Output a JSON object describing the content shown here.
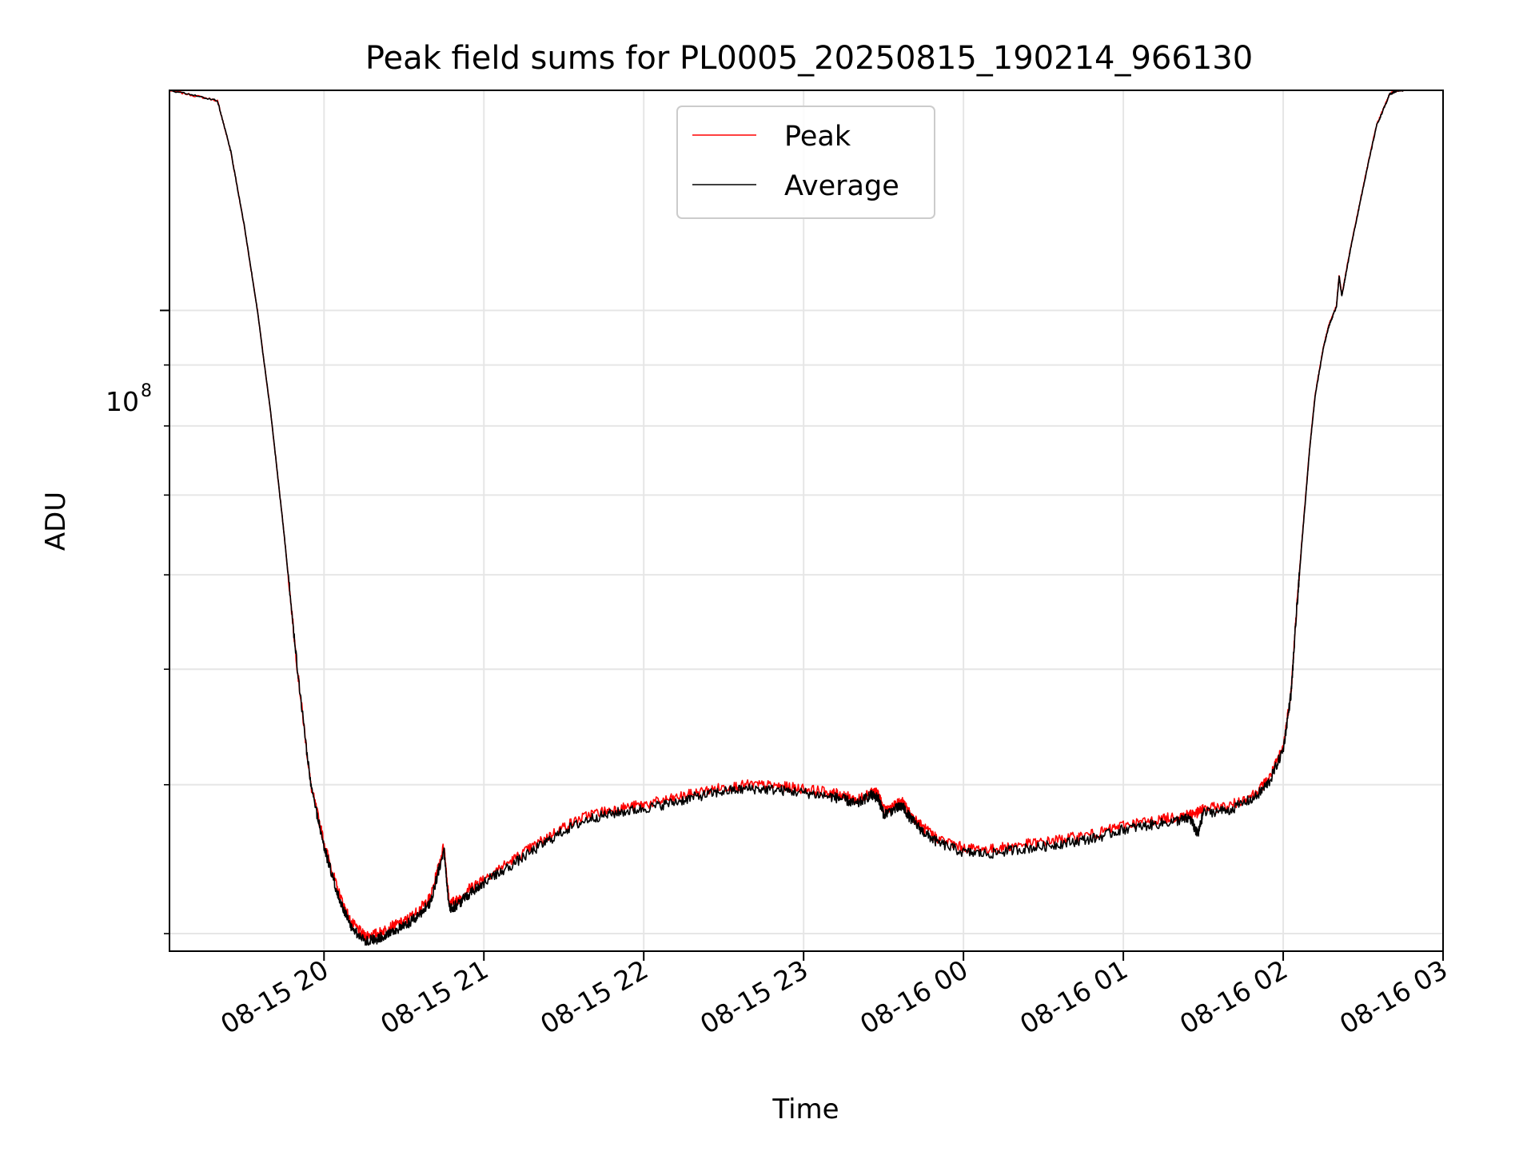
{
  "chart_data": {
    "type": "line",
    "title": "Peak field sums for PL0005_20250815_190214_966130",
    "xlabel": "Time",
    "ylabel": "ADU",
    "x_scale": "time",
    "y_scale": "log",
    "x_tick_labels": [
      "08-15 20",
      "08-15 21",
      "08-15 22",
      "08-15 23",
      "08-16 00",
      "08-16 01",
      "08-16 02",
      "08-16 03"
    ],
    "y_tick_label": {
      "base": "10",
      "exponent": "8"
    },
    "xlim": [
      "2025-08-15 19:02",
      "2025-08-16 03:00"
    ],
    "ylim": [
      29000000,
      153000000
    ],
    "grid": true,
    "legend": {
      "placement": "upper center",
      "entries": [
        "Peak",
        "Average"
      ]
    },
    "colors": {
      "Peak": "#ff0000",
      "Average": "#000000",
      "grid": "#e6e6e6"
    },
    "x": [
      "2025-08-15 19:02",
      "2025-08-15 19:20",
      "2025-08-15 19:25",
      "2025-08-15 19:30",
      "2025-08-15 19:35",
      "2025-08-15 19:40",
      "2025-08-15 19:45",
      "2025-08-15 19:50",
      "2025-08-15 19:55",
      "2025-08-15 20:00",
      "2025-08-15 20:05",
      "2025-08-15 20:10",
      "2025-08-15 20:15",
      "2025-08-15 20:20",
      "2025-08-15 20:25",
      "2025-08-15 20:30",
      "2025-08-15 20:35",
      "2025-08-15 20:40",
      "2025-08-15 20:45",
      "2025-08-15 20:47",
      "2025-08-15 20:50",
      "2025-08-15 20:55",
      "2025-08-15 21:00",
      "2025-08-15 21:10",
      "2025-08-15 21:20",
      "2025-08-15 21:30",
      "2025-08-15 21:40",
      "2025-08-15 21:50",
      "2025-08-15 22:00",
      "2025-08-15 22:10",
      "2025-08-15 22:20",
      "2025-08-15 22:30",
      "2025-08-15 22:40",
      "2025-08-15 22:50",
      "2025-08-15 23:00",
      "2025-08-15 23:10",
      "2025-08-15 23:15",
      "2025-08-15 23:20",
      "2025-08-15 23:25",
      "2025-08-15 23:28",
      "2025-08-15 23:30",
      "2025-08-15 23:35",
      "2025-08-15 23:37",
      "2025-08-15 23:40",
      "2025-08-15 23:45",
      "2025-08-15 23:50",
      "2025-08-16 00:00",
      "2025-08-16 00:10",
      "2025-08-16 00:20",
      "2025-08-16 00:30",
      "2025-08-16 00:40",
      "2025-08-16 00:50",
      "2025-08-16 01:00",
      "2025-08-16 01:10",
      "2025-08-16 01:20",
      "2025-08-16 01:25",
      "2025-08-16 01:28",
      "2025-08-16 01:30",
      "2025-08-16 01:40",
      "2025-08-16 01:50",
      "2025-08-16 01:55",
      "2025-08-16 02:00",
      "2025-08-16 02:03",
      "2025-08-16 02:05",
      "2025-08-16 02:07",
      "2025-08-16 02:10",
      "2025-08-16 02:12",
      "2025-08-16 02:15",
      "2025-08-16 02:17",
      "2025-08-16 02:20",
      "2025-08-16 02:21",
      "2025-08-16 02:22",
      "2025-08-16 02:25",
      "2025-08-16 02:30",
      "2025-08-16 02:35",
      "2025-08-16 02:40",
      "2025-08-16 02:43",
      "2025-08-16 02:45"
    ],
    "series": [
      {
        "name": "Peak",
        "values": [
          153000000,
          150000000,
          136000000,
          118000000,
          100000000,
          82000000,
          65000000,
          50000000,
          40000000,
          35800000,
          32700000,
          30700000,
          29900000,
          30000000,
          30400000,
          30700000,
          31300000,
          32200000,
          35600000,
          31800000,
          32000000,
          32800000,
          33400000,
          34500000,
          35700000,
          36900000,
          37800000,
          38200000,
          38500000,
          38900000,
          39400000,
          39800000,
          40000000,
          39900000,
          39700000,
          39400000,
          39200000,
          38800000,
          39500000,
          39300000,
          38100000,
          38500000,
          38700000,
          37800000,
          36800000,
          36100000,
          35400000,
          35300000,
          35600000,
          35800000,
          36100000,
          36400000,
          37000000,
          37300000,
          37600000,
          37800000,
          37900000,
          38200000,
          38400000,
          39400000,
          40600000,
          43000000,
          48000000,
          56000000,
          64000000,
          77000000,
          85000000,
          93000000,
          97000000,
          101000000,
          107000000,
          103000000,
          112000000,
          127000000,
          143000000,
          152000000,
          153000000,
          153000000
        ]
      },
      {
        "name": "Average",
        "values": [
          153000000,
          150000000,
          136000000,
          118000000,
          100000000,
          82000000,
          65000000,
          50000000,
          40000000,
          35500000,
          32400000,
          30400000,
          29600000,
          29700000,
          30100000,
          30400000,
          31000000,
          31900000,
          35300000,
          31500000,
          31700000,
          32500000,
          33100000,
          34200000,
          35400000,
          36600000,
          37500000,
          37900000,
          38200000,
          38600000,
          39100000,
          39500000,
          39700000,
          39600000,
          39400000,
          39100000,
          38900000,
          38500000,
          39200000,
          39000000,
          37800000,
          38200000,
          38400000,
          37500000,
          36500000,
          35800000,
          35100000,
          35000000,
          35300000,
          35500000,
          35800000,
          36100000,
          36700000,
          37000000,
          37300000,
          37500000,
          36300000,
          37900000,
          38100000,
          39100000,
          40300000,
          42800000,
          47800000,
          55800000,
          63800000,
          76800000,
          84800000,
          92800000,
          96800000,
          100800000,
          106800000,
          102800000,
          111800000,
          126800000,
          142800000,
          151800000,
          153000000,
          153000000
        ]
      }
    ]
  }
}
